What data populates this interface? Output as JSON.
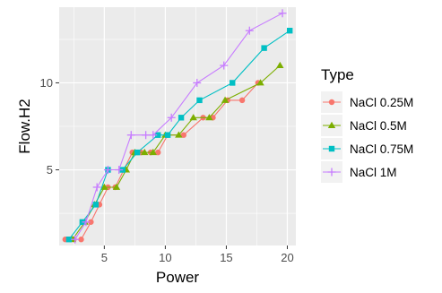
{
  "chart_data": {
    "type": "line",
    "title": "",
    "xlabel": "Power",
    "ylabel": "Flow.H2",
    "xlim": [
      1.3,
      20.7
    ],
    "ylim": [
      0.65,
      14.35
    ],
    "x_ticks": [
      5,
      10,
      15,
      20
    ],
    "y_ticks": [
      5,
      10
    ],
    "grid": true,
    "legend": {
      "title": "Type",
      "position": "right"
    },
    "series": [
      {
        "name": "NaCl 0.25M",
        "color": "#F8766D",
        "marker": "circle",
        "points": [
          [
            1.8,
            1
          ],
          [
            2.5,
            1
          ],
          [
            3.1,
            1
          ],
          [
            3.9,
            2
          ],
          [
            4.6,
            3
          ],
          [
            5.3,
            4
          ],
          [
            5.9,
            4
          ],
          [
            6.6,
            5
          ],
          [
            7.3,
            6
          ],
          [
            8.0,
            6
          ],
          [
            8.8,
            6
          ],
          [
            9.4,
            6
          ],
          [
            10.2,
            7
          ],
          [
            11.5,
            7
          ],
          [
            13.1,
            8
          ],
          [
            13.9,
            8
          ],
          [
            15.1,
            9
          ],
          [
            16.3,
            9
          ],
          [
            17.6,
            10
          ]
        ]
      },
      {
        "name": "NaCl 0.5M",
        "color": "#7CAE00",
        "marker": "triangle",
        "points": [
          [
            2.4,
            1
          ],
          [
            3.4,
            2
          ],
          [
            4.2,
            3
          ],
          [
            5.0,
            4
          ],
          [
            6.0,
            4
          ],
          [
            6.8,
            5
          ],
          [
            7.5,
            6
          ],
          [
            8.3,
            6
          ],
          [
            9.0,
            6
          ],
          [
            10.0,
            7
          ],
          [
            11.1,
            7
          ],
          [
            12.3,
            8
          ],
          [
            13.6,
            8
          ],
          [
            14.9,
            9
          ],
          [
            17.8,
            10
          ],
          [
            19.4,
            11
          ]
        ]
      },
      {
        "name": "NaCl 0.75M",
        "color": "#00BFC4",
        "marker": "square",
        "points": [
          [
            2.1,
            1
          ],
          [
            3.2,
            2
          ],
          [
            4.3,
            3
          ],
          [
            5.3,
            5
          ],
          [
            6.5,
            5
          ],
          [
            7.7,
            6
          ],
          [
            9.4,
            7
          ],
          [
            10.2,
            7
          ],
          [
            11.3,
            8
          ],
          [
            12.8,
            9
          ],
          [
            15.5,
            10
          ],
          [
            18.1,
            12
          ],
          [
            20.2,
            13
          ]
        ]
      },
      {
        "name": "NaCl 1M",
        "color": "#C77CFF",
        "marker": "plus",
        "points": [
          [
            2.6,
            1
          ],
          [
            3.5,
            2
          ],
          [
            4.4,
            4
          ],
          [
            5.3,
            5
          ],
          [
            6.2,
            5
          ],
          [
            7.2,
            7
          ],
          [
            8.4,
            7
          ],
          [
            9.0,
            7
          ],
          [
            10.5,
            8
          ],
          [
            12.6,
            10
          ],
          [
            14.8,
            11
          ],
          [
            16.9,
            13
          ],
          [
            19.6,
            14
          ]
        ]
      }
    ]
  }
}
